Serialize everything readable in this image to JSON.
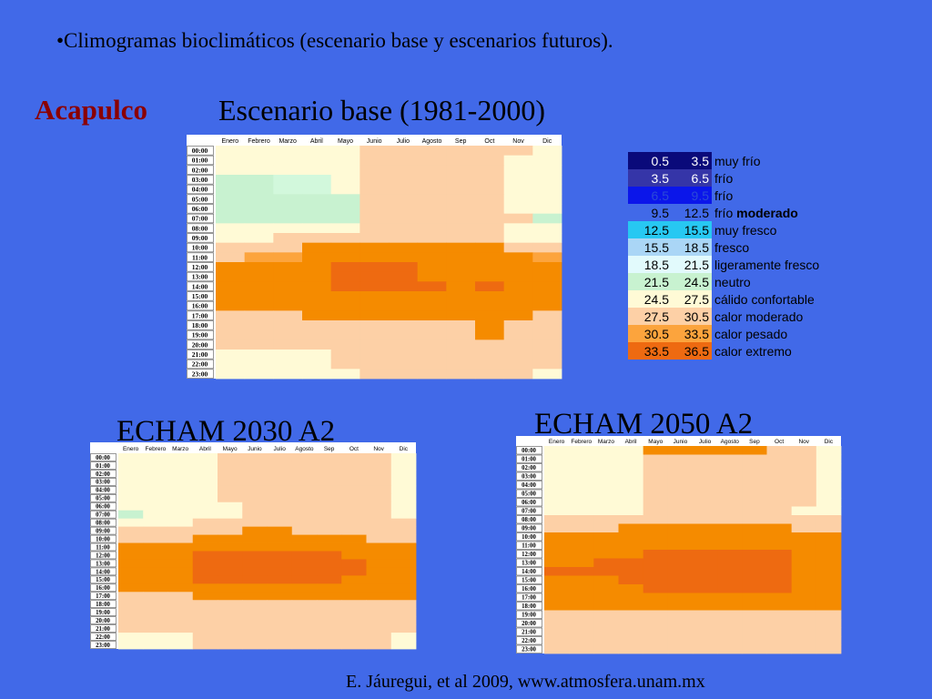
{
  "slide": {
    "bullet": "•Climogramas bioclimáticos (escenario base y escenarios futuros).",
    "city": "Acapulco",
    "credit": "E. Jáuregui, et al 2009, www.atmosfera.unam.mx"
  },
  "palette": {
    "0": "#fffad6",
    "1": "#fdd0a6",
    "2": "#fca43d",
    "3": "#f58b00",
    "4": "#ee6a11",
    "n": "#c8f2d0",
    "m": "#d2f8dc"
  },
  "legend": [
    {
      "from": "0.5",
      "to": "3.5",
      "label": "muy frío",
      "bold": "",
      "color": "#0a0a7a",
      "text_color": "#ffffff"
    },
    {
      "from": "3.5",
      "to": "6.5",
      "label": "frío",
      "bold": "",
      "color": "#3535a8",
      "text_color": "#ffffff"
    },
    {
      "from": "6.5",
      "to": "9.5",
      "label": "frío",
      "bold": "",
      "color": "#0b16ea",
      "text_color": "#2b4ad8"
    },
    {
      "from": "9.5",
      "to": "12.5",
      "label": "frío ",
      "bold": "moderado",
      "color": "#4169e8",
      "text_color": "#000000"
    },
    {
      "from": "12.5",
      "to": "15.5",
      "label": "muy fresco",
      "bold": "",
      "color": "#27c8f2",
      "text_color": "#000000"
    },
    {
      "from": "15.5",
      "to": "18.5",
      "label": "fresco",
      "bold": "",
      "color": "#aad6f6",
      "text_color": "#000000"
    },
    {
      "from": "18.5",
      "to": "21.5",
      "label": "ligeramente fresco",
      "bold": "",
      "color": "#e2fafc",
      "text_color": "#000000"
    },
    {
      "from": "21.5",
      "to": "24.5",
      "label": "neutro",
      "bold": "",
      "color": "#c8f2d0",
      "text_color": "#000000"
    },
    {
      "from": "24.5",
      "to": "27.5",
      "label": "cálido confortable",
      "bold": "",
      "color": "#fffad6",
      "text_color": "#000000"
    },
    {
      "from": "27.5",
      "to": "30.5",
      "label": "calor moderado",
      "bold": "",
      "color": "#fdd0a6",
      "text_color": "#000000"
    },
    {
      "from": "30.5",
      "to": "33.5",
      "label": "calor pesado",
      "bold": "",
      "color": "#fca43d",
      "text_color": "#000000"
    },
    {
      "from": "33.5",
      "to": "36.5",
      "label": "calor extremo",
      "bold": "",
      "color": "#ee6a11",
      "text_color": "#000000"
    }
  ],
  "chart_data": [
    {
      "type": "heatmap",
      "title": "Escenario base (1981-2000)",
      "x": [
        "Enero",
        "Febrero",
        "Marzo",
        "Abril",
        "Mayo",
        "Junio",
        "Julio",
        "Agosto",
        "Sep",
        "Oct",
        "Nov",
        "Dic"
      ],
      "y": [
        "00:00",
        "01:00",
        "02:00",
        "03:00",
        "04:00",
        "05:00",
        "06:00",
        "07:00",
        "08:00",
        "09:00",
        "10:00",
        "11:00",
        "12:00",
        "13:00",
        "14:00",
        "15:00",
        "16:00",
        "17:00",
        "18:00",
        "19:00",
        "20:00",
        "21:00",
        "22:00",
        "23:00"
      ],
      "cells": [
        "000001111110",
        "000001111100",
        "000001111100",
        "nnmm01111100",
        "nnmm01111100",
        "nnnnn1111100",
        "nnnnn1111100",
        "nnnnn111111n",
        "000001111100",
        "001111111100",
        "111333333311",
        "122333333332",
        "333344433333",
        "333344433333",
        "333344443433",
        "333333333333",
        "333333333333",
        "111333333331",
        "111111111311",
        "111111111311",
        "111111111111",
        "000011111111",
        "000011111111",
        "000001111110"
      ]
    },
    {
      "type": "heatmap",
      "title": "ECHAM 2030 A2",
      "x": [
        "Enero",
        "Febrero",
        "Marzo",
        "Abril",
        "Mayo",
        "Junio",
        "Julio",
        "Agosto",
        "Sep",
        "Oct",
        "Nov",
        "Dic"
      ],
      "y": [
        "00:00",
        "01:00",
        "02:00",
        "03:00",
        "04:00",
        "05:00",
        "06:00",
        "07:00",
        "08:00",
        "09:00",
        "10:00",
        "11:00",
        "12:00",
        "13:00",
        "14:00",
        "15:00",
        "16:00",
        "17:00",
        "18:00",
        "19:00",
        "20:00",
        "21:00",
        "22:00",
        "23:00"
      ],
      "cells": [
        "000011111110",
        "000011111110",
        "000011111110",
        "000011111110",
        "000011111110",
        "000011111110",
        "000001111110",
        "n00001111110",
        "000111111111",
        "111113311111",
        "111333333311",
        "333333333333",
        "333444444333",
        "333444444433",
        "333444444433",
        "333444444333",
        "333333333333",
        "111333333333",
        "111111111111",
        "111111111111",
        "111111111111",
        "111111111111",
        "000111111110",
        "000111111110"
      ]
    },
    {
      "type": "heatmap",
      "title": "ECHAM 2050 A2",
      "x": [
        "Enero",
        "Febrero",
        "Marzo",
        "Abril",
        "Mayo",
        "Junio",
        "Julio",
        "Agosto",
        "Sep",
        "Oct",
        "Nov",
        "Dic"
      ],
      "y": [
        "00:00",
        "01:00",
        "02:00",
        "03:00",
        "04:00",
        "05:00",
        "06:00",
        "07:00",
        "08:00",
        "09:00",
        "10:00",
        "11:00",
        "12:00",
        "13:00",
        "14:00",
        "15:00",
        "16:00",
        "17:00",
        "18:00",
        "19:00",
        "20:00",
        "21:00",
        "22:00",
        "23:00"
      ],
      "cells": [
        "000033333110",
        "000011111110",
        "000011111110",
        "000011111110",
        "000011111110",
        "000011111110",
        "000011111110",
        "000011111100",
        "111111111111",
        "111333333311",
        "333333333333",
        "333333333333",
        "333344444433",
        "334444444433",
        "444444444433",
        "333444444433",
        "333344444433",
        "333333333333",
        "333333333333",
        "111111111111",
        "111111111111",
        "111111111111",
        "111111111111",
        "111111111111"
      ]
    }
  ]
}
